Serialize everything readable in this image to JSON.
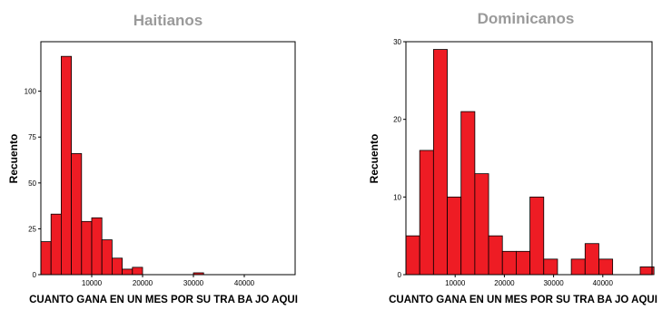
{
  "chart_data": [
    {
      "type": "bar",
      "title": "Haitianos",
      "xlabel": "CUANTO GANA  EN UN MES POR SU TRA BA JO AQUI",
      "ylabel": "Recuento",
      "xlim": [
        0,
        50000
      ],
      "ylim": [
        0,
        127
      ],
      "xticks": [
        "10000",
        "20000",
        "30000",
        "40000"
      ],
      "yticks": [
        "0",
        "25",
        "50",
        "75",
        "100"
      ],
      "bin_width": 2000,
      "bins": [
        {
          "x0": 0,
          "x1": 2000,
          "count": 18
        },
        {
          "x0": 2000,
          "x1": 4000,
          "count": 33
        },
        {
          "x0": 4000,
          "x1": 6000,
          "count": 119
        },
        {
          "x0": 6000,
          "x1": 8000,
          "count": 66
        },
        {
          "x0": 8000,
          "x1": 10000,
          "count": 29
        },
        {
          "x0": 10000,
          "x1": 12000,
          "count": 31
        },
        {
          "x0": 12000,
          "x1": 14000,
          "count": 19
        },
        {
          "x0": 14000,
          "x1": 16000,
          "count": 9
        },
        {
          "x0": 16000,
          "x1": 18000,
          "count": 3
        },
        {
          "x0": 18000,
          "x1": 20000,
          "count": 4
        },
        {
          "x0": 30000,
          "x1": 32000,
          "count": 1
        }
      ],
      "bar_color": "#ee1c24",
      "grid": false
    },
    {
      "type": "bar",
      "title": "Dominicanos",
      "xlabel": "CUANTO GANA  EN UN MES POR SU TRA BA JO AQUI",
      "ylabel": "Recuento",
      "xlim": [
        0,
        50000
      ],
      "ylim": [
        0,
        30
      ],
      "xticks": [
        "10000",
        "20000",
        "30000",
        "40000"
      ],
      "yticks": [
        "0",
        "10",
        "20",
        "30"
      ],
      "bin_width": 2800,
      "bins": [
        {
          "x0": 0,
          "x1": 2800,
          "count": 5
        },
        {
          "x0": 2800,
          "x1": 5600,
          "count": 16
        },
        {
          "x0": 5600,
          "x1": 8400,
          "count": 29
        },
        {
          "x0": 8400,
          "x1": 11200,
          "count": 10
        },
        {
          "x0": 11200,
          "x1": 14000,
          "count": 21
        },
        {
          "x0": 14000,
          "x1": 16800,
          "count": 13
        },
        {
          "x0": 16800,
          "x1": 19600,
          "count": 5
        },
        {
          "x0": 19600,
          "x1": 22400,
          "count": 3
        },
        {
          "x0": 22400,
          "x1": 25200,
          "count": 3
        },
        {
          "x0": 25200,
          "x1": 28000,
          "count": 10
        },
        {
          "x0": 28000,
          "x1": 30800,
          "count": 2
        },
        {
          "x0": 33600,
          "x1": 36400,
          "count": 2
        },
        {
          "x0": 36400,
          "x1": 39200,
          "count": 4
        },
        {
          "x0": 39200,
          "x1": 42000,
          "count": 2
        },
        {
          "x0": 47600,
          "x1": 50400,
          "count": 1
        }
      ],
      "bar_color": "#ee1c24",
      "grid": false
    }
  ]
}
